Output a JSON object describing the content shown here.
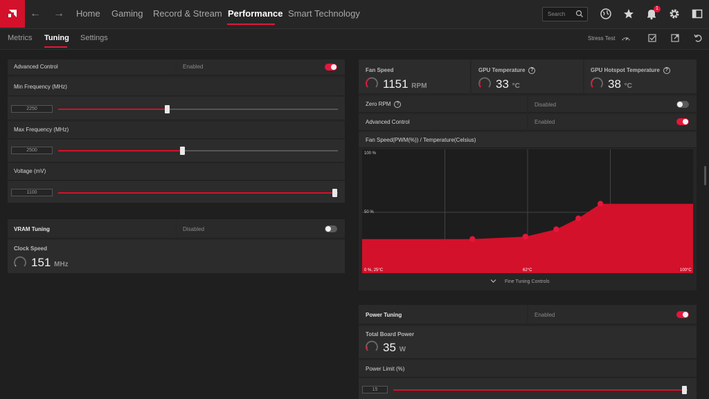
{
  "nav": {
    "items": [
      "Home",
      "Gaming",
      "Record & Stream",
      "Performance",
      "Smart Technology"
    ],
    "active": "Performance",
    "search_placeholder": "Search",
    "notification_count": "1"
  },
  "subnav": {
    "items": [
      "Metrics",
      "Tuning",
      "Settings"
    ],
    "active": "Tuning",
    "stress_test": "Stress Test"
  },
  "gpu_tuning": {
    "advanced_control": {
      "label": "Advanced Control",
      "status": "Enabled",
      "on": true
    },
    "min_frequency": {
      "label": "Min Frequency (MHz)",
      "value": "2250",
      "fraction": 0.39
    },
    "max_frequency": {
      "label": "Max Frequency (MHz)",
      "value": "2500",
      "fraction": 0.445
    },
    "voltage": {
      "label": "Voltage (mV)",
      "value": "1100",
      "fraction": 1.0
    }
  },
  "vram_tuning": {
    "title": "VRAM Tuning",
    "status": "Disabled",
    "on": false,
    "clock_label": "Clock Speed",
    "clock_value": "151",
    "clock_unit": "MHz"
  },
  "fan": {
    "fan_speed": {
      "label": "Fan Speed",
      "value": "1151",
      "unit": "RPM"
    },
    "gpu_temp": {
      "label": "GPU Temperature",
      "value": "33",
      "unit": "°C"
    },
    "hotspot_temp": {
      "label": "GPU Hotspot Temperature",
      "value": "38",
      "unit": "°C"
    },
    "zero_rpm": {
      "label": "Zero RPM",
      "status": "Disabled",
      "on": false
    },
    "advanced_control": {
      "label": "Advanced Control",
      "status": "Enabled",
      "on": true
    },
    "curve_title": "Fan Speed(PWM(%)) / Temperature(Celsius)",
    "fine_tuning": "Fine Tuning Controls"
  },
  "chart_data": {
    "type": "area",
    "title": "Fan Speed(PWM(%)) / Temperature(Celsius)",
    "xlim": [
      25,
      100
    ],
    "ylim": [
      0,
      100
    ],
    "x": [
      25,
      50,
      62,
      69,
      74,
      79,
      100
    ],
    "y": [
      28,
      28,
      30,
      36,
      45,
      57,
      57
    ],
    "points": [
      [
        50,
        28
      ],
      [
        62,
        30
      ],
      [
        69,
        36
      ],
      [
        74,
        45
      ],
      [
        79,
        57
      ]
    ],
    "y_tick_labels": [
      "100 %",
      "50 %"
    ],
    "x_tick_labels": [
      "0 %, 25°C",
      "62°C",
      "100°C"
    ],
    "color": "#d3112a"
  },
  "power": {
    "title": "Power Tuning",
    "status": "Enabled",
    "on": true,
    "board_label": "Total Board Power",
    "board_value": "35",
    "board_unit": "W",
    "limit_label": "Power Limit (%)",
    "limit_value": "15",
    "limit_fraction": 1.0
  },
  "colors": {
    "accent": "#e3173b",
    "brand": "#d3112a"
  }
}
